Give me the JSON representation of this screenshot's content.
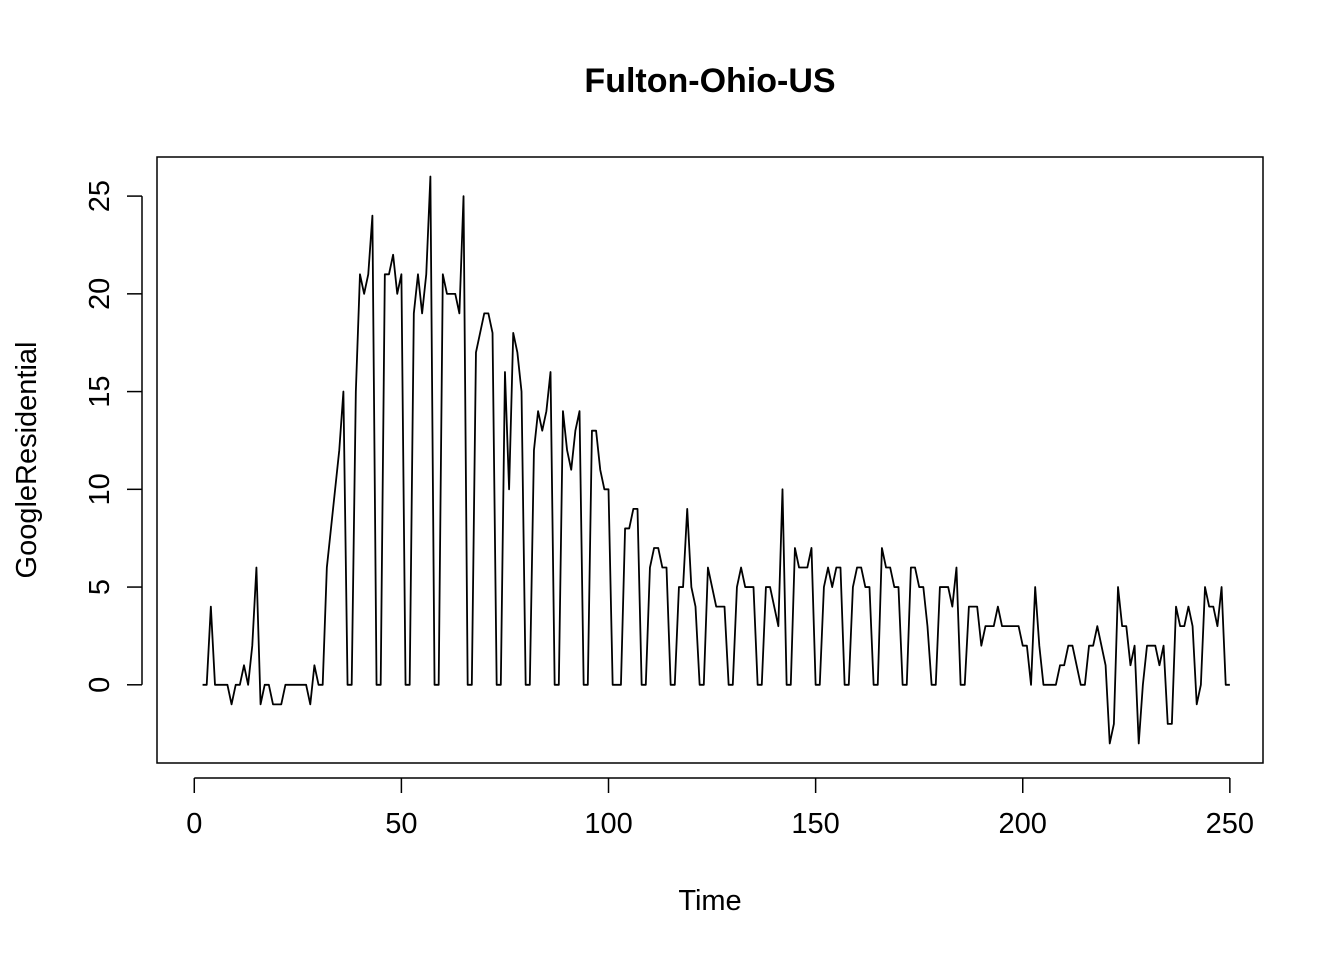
{
  "chart_data": {
    "type": "line",
    "title": "Fulton-Ohio-US",
    "xlabel": "Time",
    "ylabel": "GoogleResidential",
    "xlim": [
      -9,
      258
    ],
    "ylim": [
      -4,
      27
    ],
    "xticks": [
      0,
      50,
      100,
      150,
      200,
      250
    ],
    "yticks": [
      0,
      5,
      10,
      15,
      20,
      25
    ],
    "grid": false,
    "legend": "none",
    "line_color": "#000000",
    "x_start": 2,
    "series": [
      {
        "values": [
          0,
          0,
          4,
          0,
          0,
          0,
          0,
          -1,
          0,
          0,
          1,
          0,
          2,
          6,
          -1,
          0,
          0,
          -1,
          -1,
          -1,
          0,
          0,
          0,
          0,
          0,
          0,
          -1,
          1,
          0,
          0,
          6,
          8,
          10,
          12,
          15,
          0,
          0,
          15,
          21,
          20,
          21,
          24,
          0,
          0,
          21,
          21,
          22,
          20,
          21,
          0,
          0,
          19,
          21,
          19,
          21,
          26,
          0,
          0,
          21,
          20,
          20,
          20,
          19,
          25,
          0,
          0,
          17,
          18,
          19,
          19,
          18,
          0,
          0,
          16,
          10,
          18,
          17,
          15,
          0,
          0,
          12,
          14,
          13,
          14,
          16,
          0,
          0,
          14,
          12,
          11,
          13,
          14,
          0,
          0,
          13,
          13,
          11,
          10,
          10,
          0,
          0,
          0,
          8,
          8,
          9,
          9,
          0,
          0,
          6,
          7,
          7,
          6,
          6,
          0,
          0,
          5,
          5,
          9,
          5,
          4,
          0,
          0,
          6,
          5,
          4,
          4,
          4,
          0,
          0,
          5,
          6,
          5,
          5,
          5,
          0,
          0,
          5,
          5,
          4,
          3,
          10,
          0,
          0,
          7,
          6,
          6,
          6,
          7,
          0,
          0,
          5,
          6,
          5,
          6,
          6,
          0,
          0,
          5,
          6,
          6,
          5,
          5,
          0,
          0,
          7,
          6,
          6,
          5,
          5,
          0,
          0,
          6,
          6,
          5,
          5,
          3,
          0,
          0,
          5,
          5,
          5,
          4,
          6,
          0,
          0,
          4,
          4,
          4,
          2,
          3,
          3,
          3,
          4,
          3,
          3,
          3,
          3,
          3,
          2,
          2,
          0,
          5,
          2,
          0,
          0,
          0,
          0,
          1,
          1,
          2,
          2,
          1,
          0,
          0,
          2,
          2,
          3,
          2,
          1,
          -3,
          -2,
          5,
          3,
          3,
          1,
          2,
          -3,
          0,
          2,
          2,
          2,
          1,
          2,
          -2,
          -2,
          4,
          3,
          3,
          4,
          3,
          -1,
          0,
          5,
          4,
          4,
          3,
          5,
          0,
          0
        ]
      }
    ]
  }
}
